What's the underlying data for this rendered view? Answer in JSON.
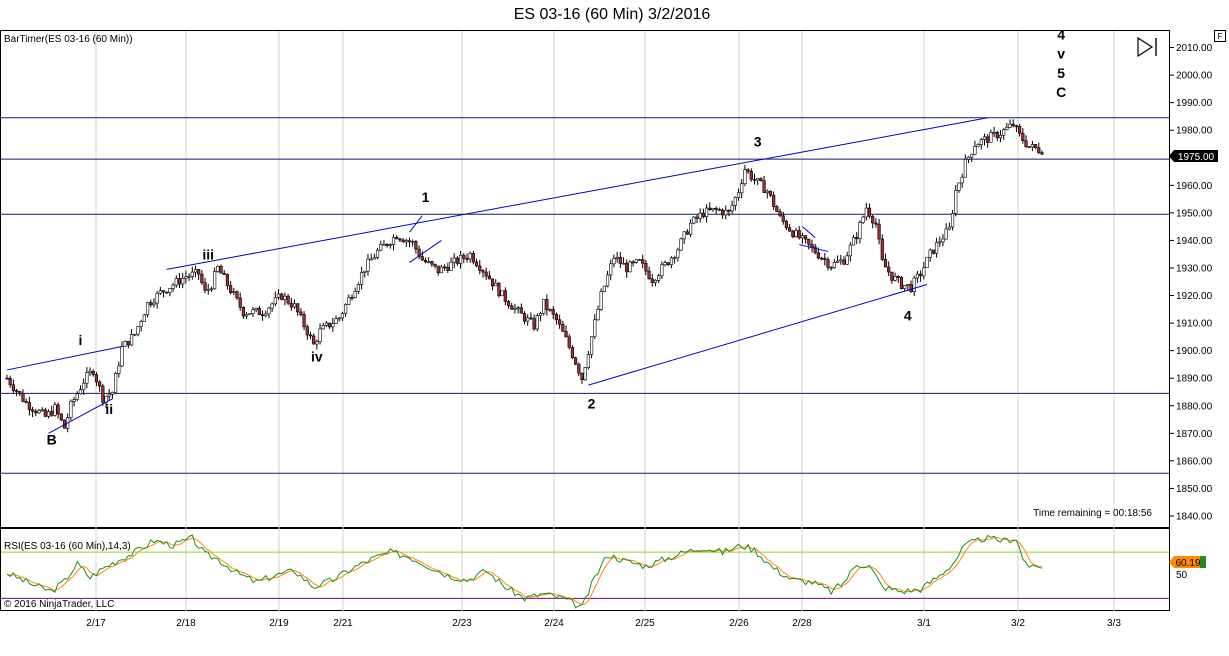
{
  "window": {
    "title": "ES 03-16 (60 Min)  3/2/2016",
    "f_button": "F",
    "copyright": "© 2016 NinjaTrader, LLC"
  },
  "indicators": {
    "bartimer_label": "BarTimer(ES 03-16 (60 Min))",
    "time_remaining": "Time remaining = 00:18:56",
    "rsi_label": "RSI(ES 03-16 (60 Min),14,3)",
    "rsi_value_text": "60.19",
    "rsi_tick": "50"
  },
  "colors": {
    "up_candle": "#ffffff",
    "down_candle": "#a52a2a",
    "trendline": "#0000cd",
    "horizontal_line": "#191970",
    "rsi_line": "#228b22",
    "rsi_avg": "#ff8c00",
    "rsi_upper": "#9acd32",
    "rsi_lower": "#800080"
  },
  "chart_data": {
    "type": "candlestick",
    "title": "ES 03-16 (60 Min)  3/2/2016",
    "y_ticks": [
      2010,
      2000,
      1990,
      1980,
      1970,
      1960,
      1950,
      1940,
      1930,
      1920,
      1910,
      1900,
      1890,
      1880,
      1870,
      1860,
      1850,
      1840
    ],
    "ylim": [
      1836,
      2016
    ],
    "x_ticks": [
      "2/17",
      "2/18",
      "2/19",
      "2/21",
      "2/23",
      "2/24",
      "2/25",
      "2/26",
      "2/28",
      "3/1",
      "3/2",
      "3/3"
    ],
    "last_price": "1975.00",
    "horizontal_levels": [
      1984.5,
      1969.5,
      1949.5,
      1884.5,
      1855.5
    ],
    "price_path": [
      [
        0,
        1890
      ],
      [
        6,
        1881
      ],
      [
        12,
        1876
      ],
      [
        15,
        1879
      ],
      [
        18,
        1872
      ],
      [
        20,
        1880
      ],
      [
        24,
        1889
      ],
      [
        27,
        1893
      ],
      [
        30,
        1883
      ],
      [
        33,
        1885
      ],
      [
        36,
        1901
      ],
      [
        40,
        1906
      ],
      [
        44,
        1917
      ],
      [
        48,
        1921
      ],
      [
        52,
        1924
      ],
      [
        56,
        1927
      ],
      [
        60,
        1928
      ],
      [
        62,
        1921
      ],
      [
        64,
        1924
      ],
      [
        66,
        1930
      ],
      [
        70,
        1922
      ],
      [
        74,
        1914
      ],
      [
        80,
        1914
      ],
      [
        86,
        1920
      ],
      [
        90,
        1916
      ],
      [
        94,
        1907
      ],
      [
        96,
        1902
      ],
      [
        98,
        1907
      ],
      [
        104,
        1912
      ],
      [
        108,
        1921
      ],
      [
        112,
        1930
      ],
      [
        116,
        1936
      ],
      [
        122,
        1942
      ],
      [
        127,
        1939
      ],
      [
        130,
        1933
      ],
      [
        135,
        1929
      ],
      [
        140,
        1932
      ],
      [
        145,
        1935
      ],
      [
        150,
        1928
      ],
      [
        155,
        1920
      ],
      [
        160,
        1914
      ],
      [
        165,
        1909
      ],
      [
        168,
        1917
      ],
      [
        172,
        1911
      ],
      [
        175,
        1904
      ],
      [
        178,
        1896
      ],
      [
        180,
        1890
      ],
      [
        183,
        1905
      ],
      [
        186,
        1920
      ],
      [
        190,
        1934
      ],
      [
        194,
        1930
      ],
      [
        198,
        1932
      ],
      [
        202,
        1926
      ],
      [
        206,
        1931
      ],
      [
        210,
        1937
      ],
      [
        214,
        1946
      ],
      [
        218,
        1950
      ],
      [
        222,
        1951
      ],
      [
        226,
        1950
      ],
      [
        229,
        1958
      ],
      [
        231,
        1966
      ],
      [
        234,
        1962
      ],
      [
        238,
        1958
      ],
      [
        242,
        1948
      ],
      [
        246,
        1943
      ],
      [
        250,
        1939
      ],
      [
        254,
        1935
      ],
      [
        258,
        1931
      ],
      [
        262,
        1933
      ],
      [
        266,
        1942
      ],
      [
        269,
        1952
      ],
      [
        272,
        1946
      ],
      [
        274,
        1932
      ],
      [
        277,
        1927
      ],
      [
        280,
        1924
      ],
      [
        283,
        1923
      ],
      [
        286,
        1928
      ],
      [
        289,
        1935
      ],
      [
        292,
        1940
      ],
      [
        295,
        1944
      ],
      [
        297,
        1958
      ],
      [
        300,
        1968
      ],
      [
        303,
        1975
      ],
      [
        307,
        1977
      ],
      [
        311,
        1979
      ],
      [
        315,
        1982
      ],
      [
        317,
        1978
      ],
      [
        320,
        1974
      ],
      [
        323,
        1973
      ]
    ],
    "bar_count": 325,
    "trendlines": [
      {
        "from": [
          0,
          1893
        ],
        "to": [
          36,
          1901.5
        ]
      },
      {
        "from": [
          13,
          1870
        ],
        "to": [
          33,
          1882.5
        ]
      },
      {
        "from": [
          50,
          1929.5
        ],
        "to": [
          307,
          1984.5
        ]
      },
      {
        "from": [
          182,
          1887.5
        ],
        "to": [
          288,
          1924
        ]
      },
      {
        "from": [
          126,
          1943
        ],
        "to": [
          130,
          1949
        ]
      },
      {
        "from": [
          126,
          1932
        ],
        "to": [
          136,
          1940
        ]
      },
      {
        "from": [
          249,
          1945
        ],
        "to": [
          253,
          1941
        ]
      },
      {
        "from": [
          248,
          1938.5
        ],
        "to": [
          257,
          1936
        ]
      }
    ],
    "wave_labels": [
      {
        "text": "B",
        "x": 14,
        "y": 1866
      },
      {
        "text": "i",
        "x": 23,
        "y": 1902
      },
      {
        "text": "ii",
        "x": 32,
        "y": 1877
      },
      {
        "text": "iii",
        "x": 63,
        "y": 1933
      },
      {
        "text": "iv",
        "x": 97,
        "y": 1896
      },
      {
        "text": "1",
        "x": 131,
        "y": 1954
      },
      {
        "text": "2",
        "x": 183,
        "y": 1879
      },
      {
        "text": "3",
        "x": 235,
        "y": 1974
      },
      {
        "text": "4",
        "x": 282,
        "y": 1911
      },
      {
        "text": "4",
        "x": 330,
        "y": 2013
      },
      {
        "text": "v",
        "x": 330,
        "y": 2006
      },
      {
        "text": "5",
        "x": 330,
        "y": 1999
      },
      {
        "text": "C",
        "x": 330,
        "y": 1992
      }
    ],
    "rsi_panel": {
      "ylim": [
        20,
        90
      ],
      "upper_band": 70,
      "lower_band": 30,
      "rsi_path": [
        [
          0,
          52
        ],
        [
          8,
          42
        ],
        [
          14,
          36
        ],
        [
          18,
          45
        ],
        [
          22,
          60
        ],
        [
          26,
          48
        ],
        [
          30,
          56
        ],
        [
          34,
          62
        ],
        [
          40,
          70
        ],
        [
          46,
          80
        ],
        [
          52,
          76
        ],
        [
          58,
          82
        ],
        [
          62,
          68
        ],
        [
          66,
          64
        ],
        [
          72,
          52
        ],
        [
          78,
          44
        ],
        [
          84,
          50
        ],
        [
          90,
          54
        ],
        [
          96,
          40
        ],
        [
          102,
          46
        ],
        [
          108,
          56
        ],
        [
          114,
          64
        ],
        [
          120,
          70
        ],
        [
          126,
          66
        ],
        [
          132,
          58
        ],
        [
          138,
          50
        ],
        [
          144,
          46
        ],
        [
          150,
          54
        ],
        [
          156,
          40
        ],
        [
          162,
          30
        ],
        [
          168,
          34
        ],
        [
          174,
          30
        ],
        [
          180,
          22
        ],
        [
          184,
          48
        ],
        [
          188,
          68
        ],
        [
          194,
          62
        ],
        [
          200,
          58
        ],
        [
          206,
          64
        ],
        [
          212,
          70
        ],
        [
          218,
          74
        ],
        [
          224,
          70
        ],
        [
          230,
          76
        ],
        [
          234,
          72
        ],
        [
          240,
          56
        ],
        [
          246,
          46
        ],
        [
          252,
          44
        ],
        [
          258,
          36
        ],
        [
          262,
          44
        ],
        [
          266,
          60
        ],
        [
          270,
          58
        ],
        [
          274,
          40
        ],
        [
          280,
          36
        ],
        [
          286,
          38
        ],
        [
          292,
          50
        ],
        [
          296,
          60
        ],
        [
          300,
          76
        ],
        [
          306,
          82
        ],
        [
          312,
          80
        ],
        [
          316,
          82
        ],
        [
          318,
          64
        ],
        [
          321,
          56
        ],
        [
          324,
          58
        ]
      ]
    }
  }
}
